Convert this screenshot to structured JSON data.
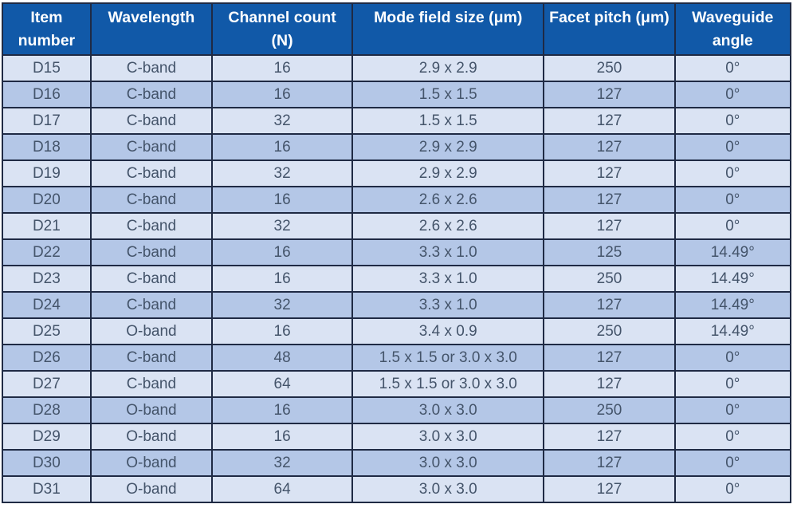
{
  "colors": {
    "header_bg": "#1159A8",
    "header_text": "#FFFFFF",
    "row_light": "#DAE3F3",
    "row_dark": "#B4C7E7",
    "border": "#1F2A44",
    "body_text": "#44546A",
    "page_bg": "#FFFFFF"
  },
  "table": {
    "columns": [
      "Item number",
      "Wavelength",
      "Channel count (N)",
      "Mode field size (μm)",
      "Facet pitch (μm)",
      "Waveguide angle"
    ],
    "rows": [
      [
        "D15",
        "C-band",
        "16",
        "2.9 x 2.9",
        "250",
        "0°"
      ],
      [
        "D16",
        "C-band",
        "16",
        "1.5 x 1.5",
        "127",
        "0°"
      ],
      [
        "D17",
        "C-band",
        "32",
        "1.5 x 1.5",
        "127",
        "0°"
      ],
      [
        "D18",
        "C-band",
        "16",
        "2.9 x 2.9",
        "127",
        "0°"
      ],
      [
        "D19",
        "C-band",
        "32",
        "2.9 x 2.9",
        "127",
        "0°"
      ],
      [
        "D20",
        "C-band",
        "16",
        "2.6 x 2.6",
        "127",
        "0°"
      ],
      [
        "D21",
        "C-band",
        "32",
        "2.6 x 2.6",
        "127",
        "0°"
      ],
      [
        "D22",
        "C-band",
        "16",
        "3.3 x 1.0",
        "125",
        "14.49°"
      ],
      [
        "D23",
        "C-band",
        "16",
        "3.3 x 1.0",
        "250",
        "14.49°"
      ],
      [
        "D24",
        "C-band",
        "32",
        "3.3 x 1.0",
        "127",
        "14.49°"
      ],
      [
        "D25",
        "O-band",
        "16",
        "3.4 x 0.9",
        "250",
        "14.49°"
      ],
      [
        "D26",
        "C-band",
        "48",
        "1.5 x 1.5 or 3.0 x 3.0",
        "127",
        "0°"
      ],
      [
        "D27",
        "C-band",
        "64",
        "1.5 x 1.5 or 3.0 x 3.0",
        "127",
        "0°"
      ],
      [
        "D28",
        "O-band",
        "16",
        "3.0 x 3.0",
        "250",
        "0°"
      ],
      [
        "D29",
        "O-band",
        "16",
        "3.0 x 3.0",
        "127",
        "0°"
      ],
      [
        "D30",
        "O-band",
        "32",
        "3.0 x 3.0",
        "127",
        "0°"
      ],
      [
        "D31",
        "O-band",
        "64",
        "3.0 x 3.0",
        "127",
        "0°"
      ]
    ]
  }
}
